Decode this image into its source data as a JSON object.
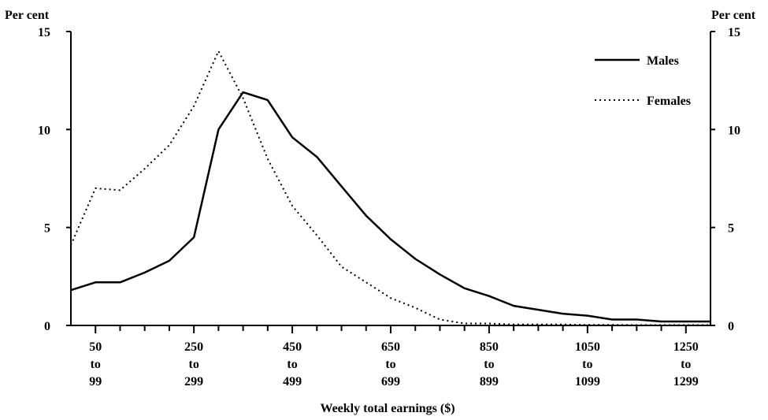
{
  "chart_data": {
    "type": "line",
    "xlabel": "Weekly total earnings ($)",
    "ylabel_left": "Per cent",
    "ylabel_right": "Per cent",
    "ylim": [
      0,
      15
    ],
    "yticks": [
      0,
      5,
      10,
      15
    ],
    "x_tick_labels": [
      [
        "50",
        "to",
        "99"
      ],
      [
        "250",
        "to",
        "299"
      ],
      [
        "450",
        "to",
        "499"
      ],
      [
        "650",
        "to",
        "699"
      ],
      [
        "850",
        "to",
        "899"
      ],
      [
        "1050",
        "to",
        "1099"
      ],
      [
        "1250",
        "to",
        "1299"
      ]
    ],
    "x_tick_values": [
      50,
      250,
      450,
      650,
      850,
      1050,
      1250
    ],
    "grid": false,
    "legend_position": "top-right",
    "series": [
      {
        "name": "Males",
        "style": "solid",
        "color": "#000000",
        "x": [
          0,
          50,
          100,
          150,
          200,
          250,
          300,
          350,
          400,
          450,
          500,
          550,
          600,
          650,
          700,
          750,
          800,
          850,
          900,
          950,
          1000,
          1050,
          1100,
          1150,
          1200,
          1250,
          1300
        ],
        "values": [
          1.8,
          2.2,
          2.2,
          2.7,
          3.3,
          4.5,
          10.0,
          11.9,
          11.5,
          9.6,
          8.6,
          7.1,
          5.6,
          4.4,
          3.4,
          2.6,
          1.9,
          1.5,
          1.0,
          0.8,
          0.6,
          0.5,
          0.3,
          0.3,
          0.2,
          0.2,
          0.2
        ]
      },
      {
        "name": "Females",
        "style": "dotted",
        "color": "#000000",
        "x": [
          0,
          50,
          100,
          150,
          200,
          250,
          300,
          350,
          400,
          450,
          500,
          550,
          600,
          650,
          700,
          750,
          800,
          850,
          900,
          950,
          1000,
          1050,
          1100,
          1150,
          1200,
          1250,
          1300
        ],
        "values": [
          4.1,
          7.0,
          6.9,
          8.0,
          9.2,
          11.2,
          14.0,
          11.6,
          8.5,
          6.1,
          4.6,
          3.0,
          2.2,
          1.4,
          0.9,
          0.3,
          0.1,
          0.1,
          0.05,
          0.05,
          0.05,
          0.03,
          0.03,
          0.02,
          0.02,
          0.02,
          0.02
        ]
      }
    ]
  }
}
